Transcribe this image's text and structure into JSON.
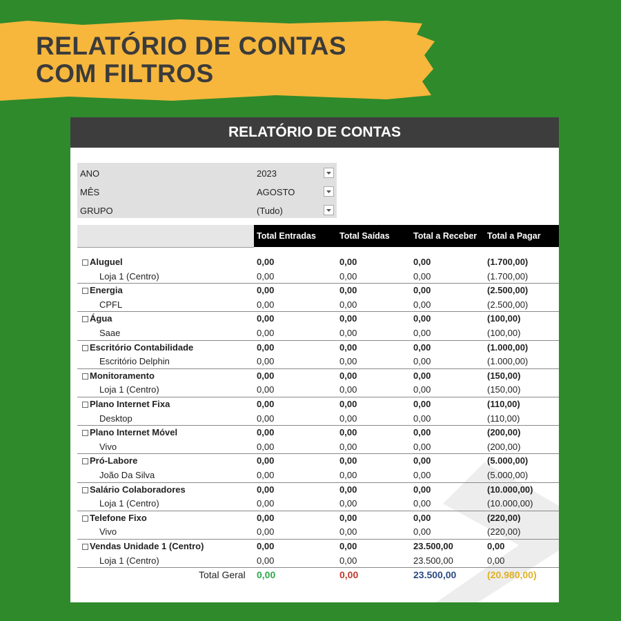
{
  "banner": {
    "lines": [
      "RELATÓRIO DE CONTAS",
      "COM FILTROS"
    ]
  },
  "report": {
    "title": "RELATÓRIO DE CONTAS",
    "filters": [
      {
        "label": "ANO",
        "value": "2023"
      },
      {
        "label": "MÊS",
        "value": "AGOSTO"
      },
      {
        "label": "GRUPO",
        "value": "(Tudo)"
      }
    ],
    "columns": [
      "Total Entradas",
      "Total Saídas",
      "Total a Receber",
      "Total a Pagar"
    ],
    "groups": [
      {
        "name": "Aluguel",
        "values": [
          "0,00",
          "0,00",
          "0,00",
          "(1.700,00)"
        ],
        "children": [
          {
            "name": "Loja 1 (Centro)",
            "values": [
              "0,00",
              "0,00",
              "0,00",
              "(1.700,00)"
            ]
          }
        ]
      },
      {
        "name": "Energia",
        "values": [
          "0,00",
          "0,00",
          "0,00",
          "(2.500,00)"
        ],
        "children": [
          {
            "name": "CPFL",
            "values": [
              "0,00",
              "0,00",
              "0,00",
              "(2.500,00)"
            ]
          }
        ]
      },
      {
        "name": "Água",
        "values": [
          "0,00",
          "0,00",
          "0,00",
          "(100,00)"
        ],
        "children": [
          {
            "name": "Saae",
            "values": [
              "0,00",
              "0,00",
              "0,00",
              "(100,00)"
            ]
          }
        ]
      },
      {
        "name": "Escritório Contabilidade",
        "values": [
          "0,00",
          "0,00",
          "0,00",
          "(1.000,00)"
        ],
        "children": [
          {
            "name": "Escritório Delphin",
            "values": [
              "0,00",
              "0,00",
              "0,00",
              "(1.000,00)"
            ]
          }
        ]
      },
      {
        "name": "Monitoramento",
        "values": [
          "0,00",
          "0,00",
          "0,00",
          "(150,00)"
        ],
        "children": [
          {
            "name": "Loja 1 (Centro)",
            "values": [
              "0,00",
              "0,00",
              "0,00",
              "(150,00)"
            ]
          }
        ]
      },
      {
        "name": "Plano Internet Fixa",
        "values": [
          "0,00",
          "0,00",
          "0,00",
          "(110,00)"
        ],
        "children": [
          {
            "name": "Desktop",
            "values": [
              "0,00",
              "0,00",
              "0,00",
              "(110,00)"
            ]
          }
        ]
      },
      {
        "name": "Plano Internet Móvel",
        "values": [
          "0,00",
          "0,00",
          "0,00",
          "(200,00)"
        ],
        "children": [
          {
            "name": "Vivo",
            "values": [
              "0,00",
              "0,00",
              "0,00",
              "(200,00)"
            ]
          }
        ]
      },
      {
        "name": "Pró-Labore",
        "values": [
          "0,00",
          "0,00",
          "0,00",
          "(5.000,00)"
        ],
        "children": [
          {
            "name": "João Da Silva",
            "values": [
              "0,00",
              "0,00",
              "0,00",
              "(5.000,00)"
            ]
          }
        ]
      },
      {
        "name": "Salário Colaboradores",
        "values": [
          "0,00",
          "0,00",
          "0,00",
          "(10.000,00)"
        ],
        "children": [
          {
            "name": "Loja 1 (Centro)",
            "values": [
              "0,00",
              "0,00",
              "0,00",
              "(10.000,00)"
            ]
          }
        ]
      },
      {
        "name": "Telefone Fixo",
        "values": [
          "0,00",
          "0,00",
          "0,00",
          "(220,00)"
        ],
        "children": [
          {
            "name": "Vivo",
            "values": [
              "0,00",
              "0,00",
              "0,00",
              "(220,00)"
            ]
          }
        ]
      },
      {
        "name": "Vendas Unidade 1 (Centro)",
        "values": [
          "0,00",
          "0,00",
          "23.500,00",
          "0,00"
        ],
        "children": [
          {
            "name": "Loja 1 (Centro)",
            "values": [
              "0,00",
              "0,00",
              "23.500,00",
              "0,00"
            ]
          }
        ]
      }
    ],
    "total": {
      "label": "Total Geral",
      "values": [
        "0,00",
        "0,00",
        "23.500,00",
        "(20.980,00)"
      ],
      "colors": [
        "#2eaa4a",
        "#c0392b",
        "#2b4a80",
        "#e0b020"
      ]
    }
  }
}
